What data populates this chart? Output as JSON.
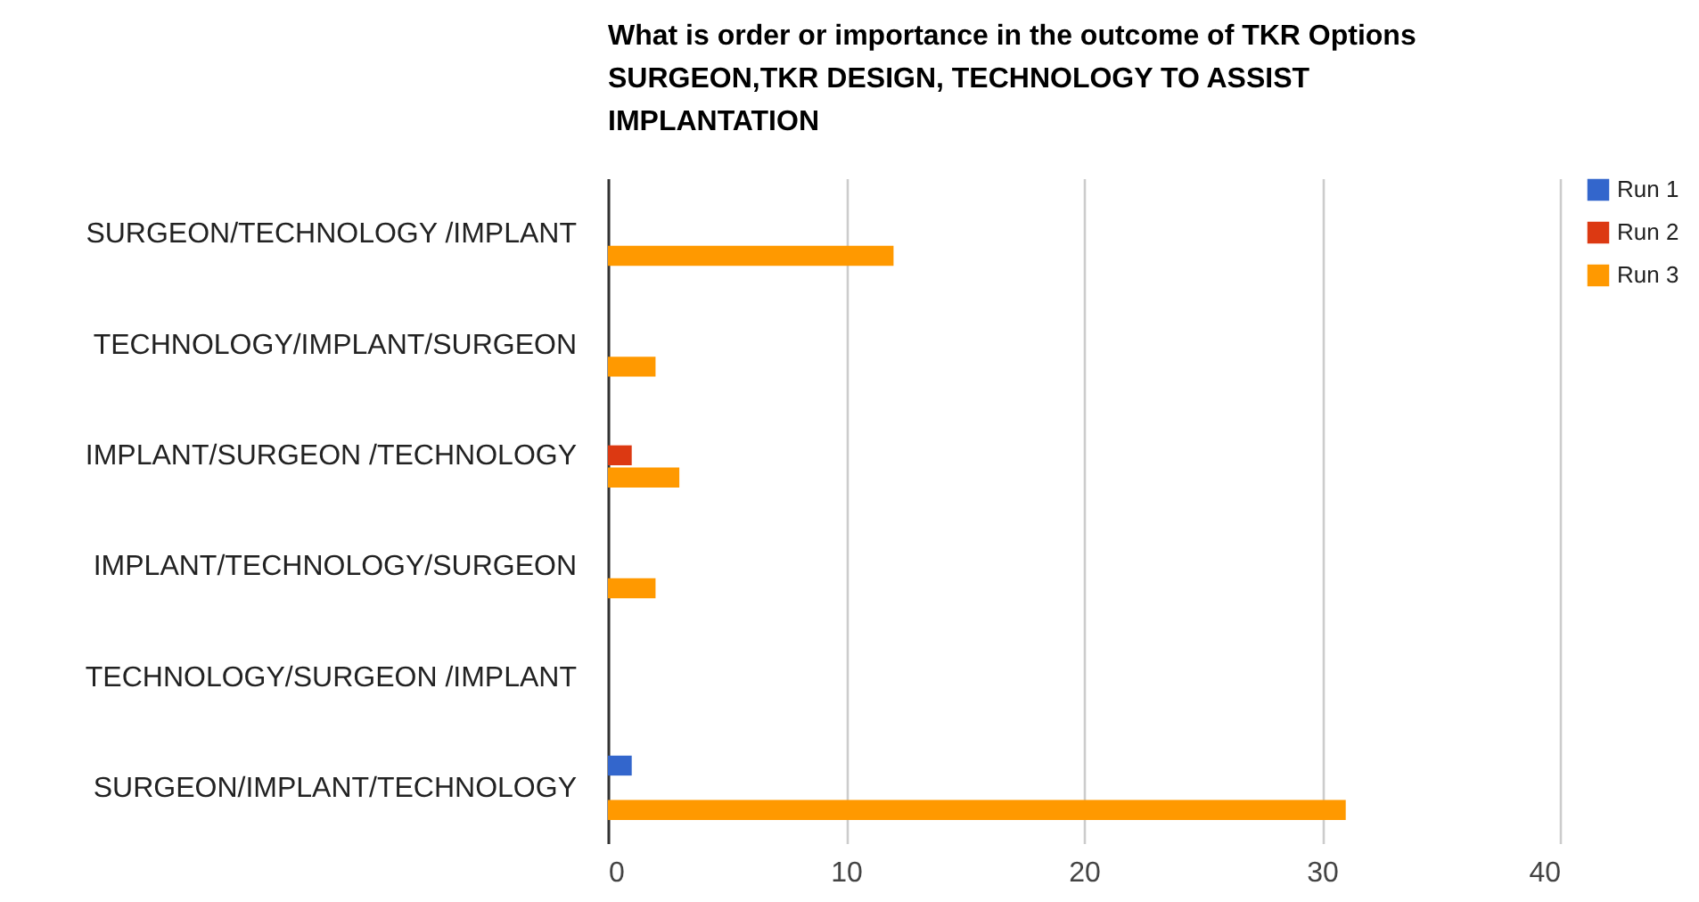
{
  "chart_data": {
    "type": "bar",
    "orientation": "horizontal",
    "title": "What is order or importance in the outcome of TKR Options\nSURGEON,TKR DESIGN, TECHNOLOGY TO ASSIST\nIMPLANTATION",
    "categories": [
      "SURGEON/TECHNOLOGY /IMPLANT",
      "TECHNOLOGY/IMPLANT/SURGEON",
      "IMPLANT/SURGEON /TECHNOLOGY",
      "IMPLANT/TECHNOLOGY/SURGEON",
      "TECHNOLOGY/SURGEON /IMPLANT",
      "SURGEON/IMPLANT/TECHNOLOGY"
    ],
    "series": [
      {
        "name": "Run 1",
        "color": "#3366cc",
        "values": [
          0,
          0,
          0,
          0,
          0,
          1
        ]
      },
      {
        "name": "Run 2",
        "color": "#dc3912",
        "values": [
          0,
          0,
          1,
          0,
          0,
          0
        ]
      },
      {
        "name": "Run 3",
        "color": "#ff9900",
        "values": [
          12,
          2,
          3,
          2,
          0,
          31
        ]
      }
    ],
    "xlim": [
      0,
      40
    ],
    "xticks": [
      0,
      10,
      20,
      30,
      40
    ],
    "grid": "x",
    "legend": "top right"
  }
}
